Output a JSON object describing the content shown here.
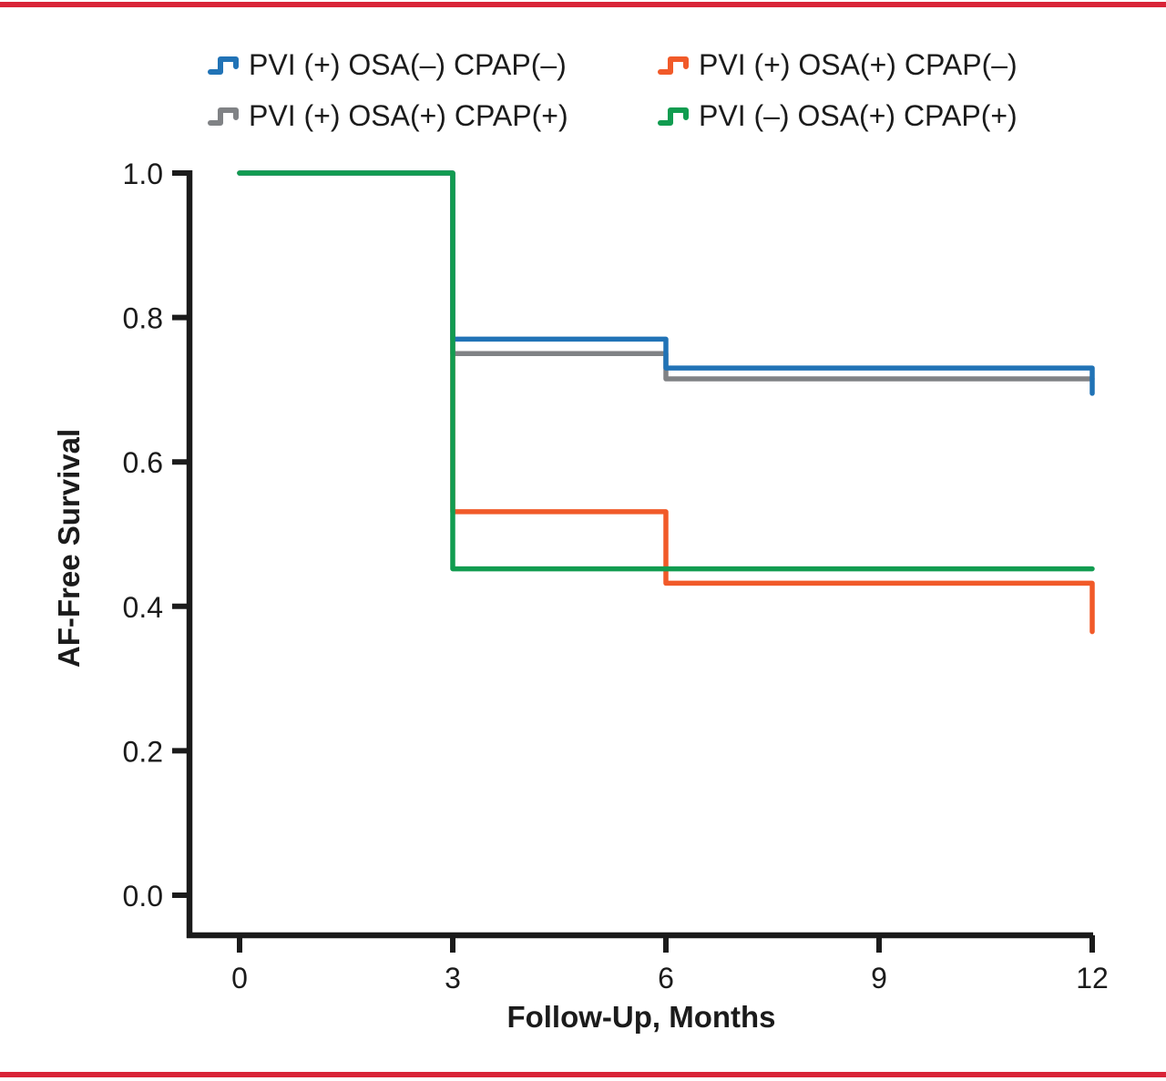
{
  "page": {
    "background": "#ffffff",
    "top_border_color": "#d92437",
    "bottom_border_color": "#d92437",
    "text_color": "#1b1b1b",
    "axis_color": "#1b1b1b"
  },
  "chart_data": {
    "type": "line",
    "variant": "kaplan_meier_step",
    "title": "",
    "xlabel": "Follow-Up, Months",
    "ylabel": "AF-Free Survival",
    "xlim": [
      0,
      12
    ],
    "ylim": [
      0.0,
      1.0
    ],
    "grid": false,
    "legend_position": "top-center-2x2",
    "x_ticks": [
      {
        "v": 0,
        "label": "0"
      },
      {
        "v": 3,
        "label": "3"
      },
      {
        "v": 6,
        "label": "6"
      },
      {
        "v": 9,
        "label": "9"
      },
      {
        "v": 12,
        "label": "12"
      }
    ],
    "y_ticks": [
      {
        "v": 1.0,
        "label": "1.0"
      },
      {
        "v": 0.8,
        "label": "0.8"
      },
      {
        "v": 0.6,
        "label": "0.6"
      },
      {
        "v": 0.4,
        "label": "0.4"
      },
      {
        "v": 0.2,
        "label": "0.2"
      },
      {
        "v": 0.0,
        "label": "0.0"
      }
    ],
    "series": [
      {
        "name": "PVI (+) OSA(–) CPAP(–)",
        "color": "#2173b6",
        "points": [
          [
            0,
            1.0
          ],
          [
            3,
            1.0
          ],
          [
            3,
            0.77
          ],
          [
            6,
            0.77
          ],
          [
            6,
            0.73
          ],
          [
            12,
            0.73
          ],
          [
            12,
            0.695
          ]
        ]
      },
      {
        "name": "PVI (+) OSA(+) CPAP(–)",
        "color": "#f15a29",
        "points": [
          [
            0,
            1.0
          ],
          [
            3,
            1.0
          ],
          [
            3,
            0.531
          ],
          [
            6,
            0.531
          ],
          [
            6,
            0.432
          ],
          [
            12,
            0.432
          ],
          [
            12,
            0.365
          ]
        ]
      },
      {
        "name": "PVI (+) OSA(+) CPAP(+)",
        "color": "#808285",
        "points": [
          [
            0,
            1.0
          ],
          [
            3,
            1.0
          ],
          [
            3,
            0.75
          ],
          [
            6,
            0.75
          ],
          [
            6,
            0.715
          ],
          [
            12,
            0.715
          ]
        ]
      },
      {
        "name": "PVI (–) OSA(+) CPAP(+)",
        "color": "#119c50",
        "points": [
          [
            0,
            1.0
          ],
          [
            3,
            1.0
          ],
          [
            3,
            0.452
          ],
          [
            12,
            0.452
          ]
        ]
      }
    ]
  }
}
